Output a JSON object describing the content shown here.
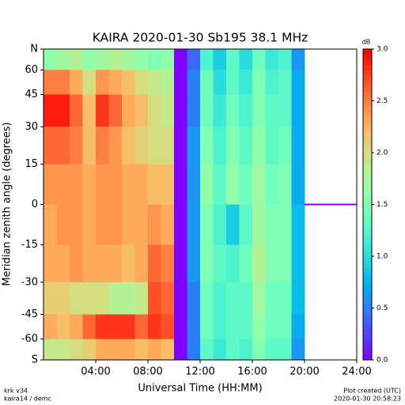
{
  "chart_data": {
    "type": "heatmap",
    "title": "KAIRA   2020-01-30   Sb195   38.1 MHz",
    "x_label": "Universal Time (HH:MM)",
    "y_label": "Meridian zenith angle (degrees)",
    "colorbar_label": "dB",
    "colormap": "rainbow",
    "y_scale": "sine",
    "xlim": [
      0,
      24
    ],
    "xticks": [
      {
        "value": 4,
        "label": "04:00"
      },
      {
        "value": 8,
        "label": "08:00"
      },
      {
        "value": 12,
        "label": "12:00"
      },
      {
        "value": 16,
        "label": "16:00"
      },
      {
        "value": 20,
        "label": "20:00"
      },
      {
        "value": 24,
        "label": "24:00"
      }
    ],
    "ylim": [
      -90,
      90
    ],
    "yticks": [
      {
        "value": 90,
        "label": "N"
      },
      60,
      45,
      30,
      15,
      0,
      -15,
      -30,
      -45,
      -60,
      {
        "value": -90,
        "label": "S"
      }
    ],
    "clim": [
      0,
      3
    ],
    "cticks": [
      {
        "value": 0,
        "label": "0.0"
      },
      {
        "value": 0.5,
        "label": "0.5"
      },
      {
        "value": 1,
        "label": "1.0"
      },
      {
        "value": 1.5,
        "label": "1.5"
      },
      {
        "value": 2,
        "label": "2.0"
      },
      {
        "value": 2.5,
        "label": "2.5"
      },
      {
        "value": 3,
        "label": "3.0"
      }
    ],
    "x_edges": [
      0,
      1,
      2,
      3,
      4,
      5,
      6,
      7,
      8,
      9,
      10,
      11,
      12,
      13,
      14,
      15,
      16,
      17,
      18,
      19,
      20
    ],
    "y_edges": [
      90,
      60,
      45,
      30,
      15,
      0,
      -15,
      -30,
      -45,
      -60,
      -90
    ],
    "values": [
      [
        1.6,
        1.7,
        1.8,
        1.6,
        1.7,
        1.8,
        1.7,
        1.6,
        1.5,
        1.6,
        0,
        0.4,
        1.2,
        0.9,
        1.3,
        1.0,
        1.4,
        1.1,
        1.2,
        0.6
      ],
      [
        2.5,
        2.5,
        2.3,
        2.0,
        2.4,
        2.3,
        2.2,
        2.0,
        1.9,
        1.8,
        0,
        0.5,
        1.4,
        1.0,
        1.3,
        1.1,
        1.5,
        1.2,
        1.3,
        0.7
      ],
      [
        2.9,
        2.9,
        2.6,
        2.2,
        2.8,
        2.6,
        2.3,
        2.2,
        2.0,
        1.9,
        0,
        0.5,
        1.4,
        1.1,
        1.4,
        1.2,
        1.5,
        1.3,
        1.3,
        0.7
      ],
      [
        2.6,
        2.6,
        2.5,
        2.2,
        2.5,
        2.4,
        2.2,
        2.1,
        2.0,
        2.0,
        0,
        0.6,
        1.5,
        1.2,
        1.5,
        1.3,
        1.6,
        1.3,
        1.4,
        0.7
      ],
      [
        2.4,
        2.4,
        2.4,
        2.3,
        2.4,
        2.4,
        2.3,
        2.3,
        2.2,
        2.2,
        0,
        0.6,
        1.6,
        1.3,
        1.6,
        1.4,
        1.7,
        1.4,
        1.5,
        0.7
      ],
      [
        2.3,
        2.4,
        2.4,
        2.3,
        2.4,
        2.4,
        2.3,
        2.3,
        2.4,
        2.3,
        0,
        0.6,
        1.5,
        1.2,
        0.9,
        1.3,
        1.7,
        1.5,
        1.5,
        0.8
      ],
      [
        2.3,
        2.3,
        2.4,
        2.3,
        2.3,
        2.3,
        2.2,
        2.3,
        2.6,
        2.5,
        0,
        0.6,
        1.5,
        1.3,
        1.2,
        1.4,
        1.8,
        1.5,
        1.5,
        0.8
      ],
      [
        2.1,
        2.1,
        2.0,
        2.0,
        2.0,
        1.8,
        1.8,
        1.9,
        2.7,
        2.6,
        0,
        0.5,
        1.4,
        1.2,
        1.3,
        1.3,
        1.7,
        1.4,
        1.4,
        0.8
      ],
      [
        2.3,
        2.2,
        2.3,
        2.6,
        2.8,
        2.8,
        2.8,
        2.6,
        2.8,
        2.7,
        0,
        0.5,
        1.4,
        1.2,
        1.3,
        1.3,
        1.6,
        1.4,
        1.4,
        0.7
      ],
      [
        1.9,
        1.9,
        2.0,
        2.1,
        2.3,
        2.3,
        2.3,
        2.2,
        2.3,
        2.2,
        0,
        0.5,
        1.3,
        1.1,
        1.3,
        1.2,
        1.5,
        1.3,
        1.3,
        0.6
      ]
    ],
    "line": {
      "x": [
        20,
        24
      ],
      "y": [
        0,
        0
      ],
      "color": "#7f00ff"
    },
    "footer_left": [
      "krk v34",
      "kaira14 / demc"
    ],
    "footer_right": [
      "Plot created (UTC)",
      "2020-01-30 20:58:23"
    ]
  }
}
